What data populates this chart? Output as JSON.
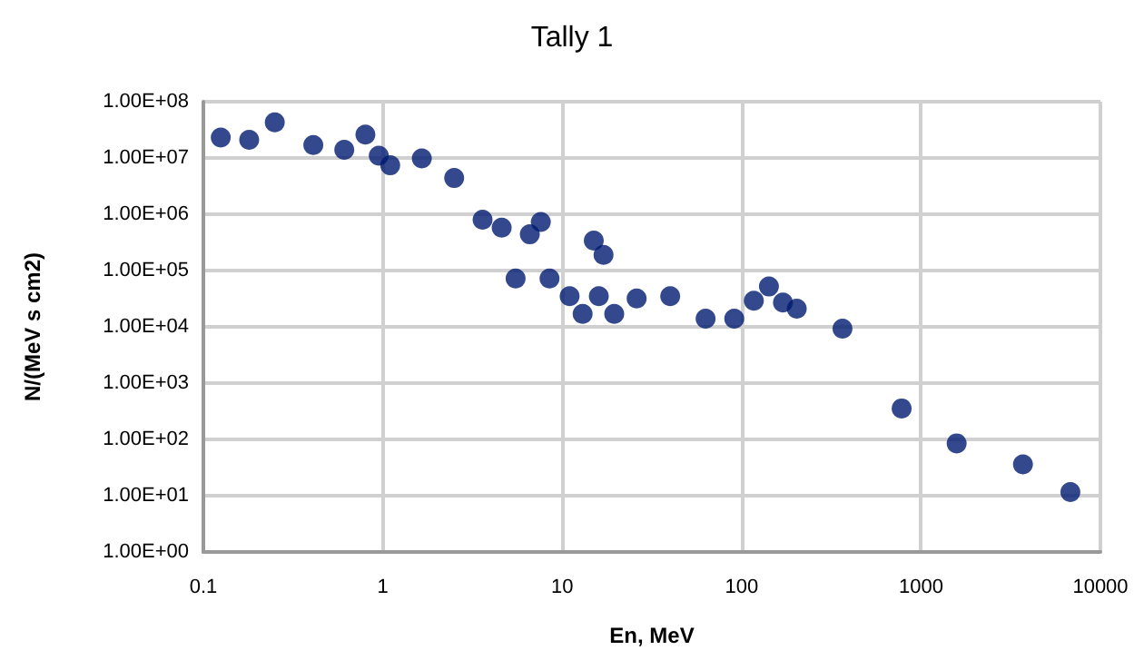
{
  "chart_data": {
    "type": "scatter",
    "title": "Tally 1",
    "xlabel": "En, MeV",
    "ylabel": "N/(MeV s cm2)",
    "log": "xy",
    "grid": true,
    "marker": "circle",
    "xlim": [
      0.1,
      10000
    ],
    "xticks": [
      0.1,
      1,
      10,
      100,
      1000,
      10000
    ],
    "ylim": [
      1,
      100000000
    ],
    "yticks": [
      {
        "value": 1,
        "label": "1.00E+00"
      },
      {
        "value": 10,
        "label": "1.00E+01"
      },
      {
        "value": 100,
        "label": "1.00E+02"
      },
      {
        "value": 1000,
        "label": "1.00E+03"
      },
      {
        "value": 10000,
        "label": "1.00E+04"
      },
      {
        "value": 100000,
        "label": "1.00E+05"
      },
      {
        "value": 1000000,
        "label": "1.00E+06"
      },
      {
        "value": 10000000,
        "label": "1.00E+07"
      },
      {
        "value": 100000000,
        "label": "1.00E+08"
      }
    ],
    "series": [
      {
        "color": "#001a70",
        "x": [
          0.125,
          0.18,
          0.25,
          0.41,
          0.61,
          0.8,
          0.95,
          1.1,
          1.65,
          2.5,
          3.6,
          4.6,
          5.5,
          6.6,
          7.6,
          8.5,
          11,
          13,
          15,
          16,
          17,
          19.5,
          26,
          40,
          63,
          91,
          117,
          142,
          170,
          203,
          365,
          780,
          1580,
          3700,
          6800
        ],
        "values": [
          23000000,
          21000000,
          43000000,
          17000000,
          14000000,
          26000000,
          11000000,
          7400000,
          9800000,
          4400000,
          800000,
          580000,
          72000,
          440000,
          730000,
          72000,
          35000,
          17000,
          340000,
          35000,
          190000,
          17000,
          32000,
          35000,
          14000,
          14000,
          29000,
          52000,
          27000,
          21000,
          9300,
          355,
          85,
          36,
          11.6
        ]
      }
    ]
  }
}
